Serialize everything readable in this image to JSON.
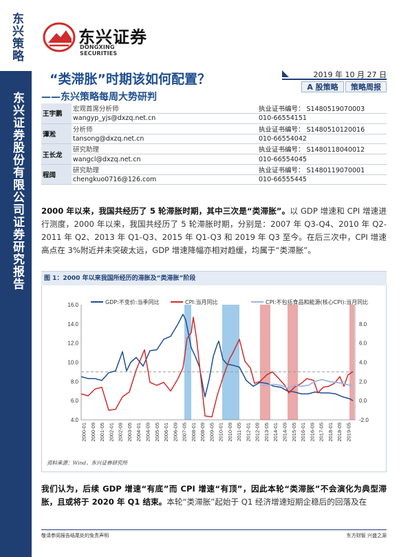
{
  "sidebar": {
    "top_label": "东兴策略",
    "main_label": "东兴证券股份有限公司证券研究报告"
  },
  "logo": {
    "cn": "东兴证券",
    "en": "DONGXING SECURITIES",
    "mark_color": "#d02c2c"
  },
  "header": {
    "title": "“类滞胀”时期该如何配置？",
    "subtitle": "——东兴策略每周大势研判",
    "date": "2019 年 10 月 27 日",
    "tags": [
      "A 股策略",
      "策略周报"
    ]
  },
  "analysts": [
    {
      "name": "王宇鹏",
      "role": "宏观首席分析师",
      "email": "wangyp_yjs@dxzq.net.cn",
      "cert": "执业证书编号：  S1480519070003",
      "phone": "010-66554151"
    },
    {
      "name": "谭淞",
      "role": "分析师",
      "email": "tansong@dxzq.net.cn",
      "cert": "执业证书编号：  S1480510120016",
      "phone": "010-66554042"
    },
    {
      "name": "王长龙",
      "role": "研究助理",
      "email": "wangcl@dxzq.net.cn",
      "cert": "执业证书编号：  S1480118040012",
      "phone": "010-66554045"
    },
    {
      "name": "程阔",
      "role": "研究助理",
      "email": "chengkuo0716@126.com",
      "cert": "执业证书编号：  S1480119070001",
      "phone": "010-66555445"
    }
  ],
  "para1": {
    "bold": "2000 年以来，我国共经历了 5 轮滞胀时期，其中三次是“类滞胀”。",
    "rest": "以 GDP 增速和 CPI 增速进行测度，2000 年以来，我国共经历了 5 轮滞胀时期，分别是：2007 年 Q3-Q4、2010 年 Q2-2011 年 Q2、2013 年 Q1-Q3、2015 年 Q1-Q3 和 2019 年 Q3 至今。在后三次中，CPI 增速高点在 3%附近并未突破太远，GDP 增速降幅亦相对趋缓，均属于“类滞胀”。"
  },
  "figure": {
    "title": "图 1：2000 年以来我国所经历的滞胀及“类滞胀”阶段",
    "source": "资料来源：Wind、东兴证券研究所"
  },
  "chart_data": {
    "type": "line",
    "series": [
      {
        "name": "GDP:不变价:当季同比",
        "color": "#1f4f8f",
        "axis": "left",
        "x": [
          2000.0,
          2000.5,
          2001.0,
          2001.5,
          2002.0,
          2002.5,
          2003.0,
          2003.3,
          2003.6,
          2004.0,
          2004.5,
          2005.0,
          2005.5,
          2006.0,
          2006.5,
          2007.0,
          2007.4,
          2007.6,
          2008.0,
          2008.3,
          2008.6,
          2008.9,
          2009.0,
          2009.3,
          2009.6,
          2009.9,
          2010.0,
          2010.3,
          2010.6,
          2011.0,
          2011.5,
          2012.0,
          2012.5,
          2013.0,
          2013.5,
          2014.0,
          2014.5,
          2015.0,
          2015.5,
          2016.0,
          2016.5,
          2017.0,
          2017.5,
          2018.0,
          2018.5,
          2019.0,
          2019.5,
          2019.75
        ],
        "y": [
          8.5,
          8.3,
          8.3,
          8.1,
          8.9,
          9.1,
          11.1,
          9.1,
          10.0,
          10.5,
          9.6,
          11.2,
          11.3,
          12.4,
          12.7,
          13.9,
          15.0,
          14.4,
          11.5,
          10.6,
          9.5,
          7.1,
          6.4,
          8.2,
          10.6,
          11.9,
          12.2,
          10.3,
          9.8,
          9.7,
          9.5,
          8.1,
          7.5,
          7.9,
          7.8,
          7.5,
          7.4,
          7.0,
          6.9,
          6.7,
          6.7,
          6.9,
          6.8,
          6.8,
          6.7,
          6.4,
          6.2,
          6.0
        ]
      },
      {
        "name": "CPI:当月同比",
        "color": "#d02c2c",
        "axis": "right",
        "x": [
          2000.0,
          2000.5,
          2001.0,
          2001.5,
          2002.0,
          2002.5,
          2003.0,
          2003.5,
          2004.0,
          2004.6,
          2005.0,
          2005.5,
          2006.0,
          2006.5,
          2007.0,
          2007.4,
          2007.7,
          2008.0,
          2008.15,
          2008.4,
          2008.7,
          2009.0,
          2009.5,
          2009.9,
          2010.3,
          2010.8,
          2011.0,
          2011.5,
          2011.9,
          2012.3,
          2012.6,
          2013.0,
          2013.5,
          2013.9,
          2014.3,
          2014.8,
          2015.1,
          2015.5,
          2016.0,
          2016.4,
          2016.9,
          2017.2,
          2017.6,
          2018.0,
          2018.4,
          2018.8,
          2019.1,
          2019.4,
          2019.75
        ],
        "y": [
          0.7,
          0.5,
          1.2,
          1.4,
          -1.0,
          -0.9,
          0.4,
          0.9,
          3.2,
          5.3,
          1.9,
          1.6,
          1.9,
          1.0,
          2.2,
          3.4,
          6.5,
          7.1,
          8.7,
          6.3,
          2.4,
          -1.6,
          -1.7,
          0.6,
          2.4,
          4.4,
          4.9,
          6.4,
          4.1,
          3.4,
          1.8,
          2.0,
          2.7,
          3.0,
          2.4,
          1.6,
          0.8,
          1.4,
          1.8,
          2.3,
          2.1,
          0.8,
          1.4,
          1.5,
          1.8,
          2.5,
          1.5,
          2.7,
          3.0
        ]
      },
      {
        "name": "CPI:不包括食品和能源(核心CPI):当月同比",
        "color": "#9fb5e0",
        "axis": "right",
        "x": [
          2013.0,
          2013.5,
          2014.0,
          2014.5,
          2015.0,
          2015.5,
          2016.0,
          2016.5,
          2017.0,
          2017.5,
          2018.0,
          2018.5,
          2019.0,
          2019.5,
          2019.75
        ],
        "y": [
          1.6,
          1.6,
          1.7,
          1.6,
          1.3,
          1.6,
          1.5,
          1.6,
          2.0,
          2.2,
          2.0,
          1.9,
          1.8,
          1.6,
          1.5
        ]
      }
    ],
    "reference_line": {
      "value": 3.0,
      "axis": "right"
    },
    "periods": [
      {
        "start": 2007.5,
        "end": 2008.0,
        "color": "#8fc2e6"
      },
      {
        "start": 2010.25,
        "end": 2011.5,
        "color": "#8fc2e6"
      },
      {
        "start": 2013.0,
        "end": 2013.75,
        "color": "#e89a9a"
      },
      {
        "start": 2015.0,
        "end": 2015.75,
        "color": "#e89a9a"
      },
      {
        "start": 2019.5,
        "end": 2019.85,
        "color": "#e89a9a"
      }
    ],
    "ylim_left": [
      4.0,
      16.0
    ],
    "yticks_left": [
      "4.0",
      "6.0",
      "8.0",
      "10.0",
      "12.0",
      "14.0",
      "16.0"
    ],
    "ylim_right": [
      -2.0,
      10.0
    ],
    "yticks_right": [
      "-2.0",
      "0.0",
      "2.0",
      "4.0",
      "6.0",
      "8.0"
    ],
    "xlim": [
      2000.0,
      2019.9
    ],
    "xticks": [
      "2000-01",
      "2000-09",
      "2001-05",
      "2002-01",
      "2002-09",
      "2003-05",
      "2004-01",
      "2004-09",
      "2005-05",
      "2006-01",
      "2006-09",
      "2007-05",
      "2008-01",
      "2008-09",
      "2009-05",
      "2010-01",
      "2010-09",
      "2011-05",
      "2012-01",
      "2012-09",
      "2013-05",
      "2014-01",
      "2014-09",
      "2015-05",
      "2016-01",
      "2016-09",
      "2017-05",
      "2018-01",
      "2018-09",
      "2019-05"
    ],
    "legend_position": "top"
  },
  "para2": {
    "bold": "我们认为，后续 GDP 增速“有底”而 CPI 增速“有顶”，因此本轮“类滞胀”不会演化为典型滞胀，且或将于 2020 年 Q1 结束。",
    "rest": "本轮“类滞胀”起始于 Q1 经济增速短期企稳后的回落及在"
  },
  "footer": {
    "left": "敬请参阅报告结尾处的免责声明",
    "right": "东方财智  兴盛之源"
  }
}
